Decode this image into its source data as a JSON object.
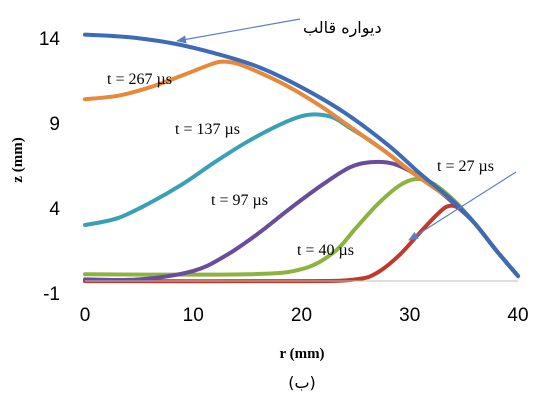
{
  "chart_data": {
    "type": "line",
    "xlabel": "r (mm)",
    "ylabel": "z (mm)",
    "xlim": [
      0,
      40
    ],
    "ylim": [
      -1,
      14
    ],
    "x_ticks": [
      0,
      10,
      20,
      30,
      40
    ],
    "y_ticks": [
      -1,
      4,
      9,
      14
    ],
    "grid": false,
    "caption": "(ب)",
    "series": [
      {
        "name": "t = 27 µs",
        "color": "#c0392b",
        "points": [
          [
            0,
            -0.3
          ],
          [
            20,
            -0.3
          ],
          [
            25,
            -0.2
          ],
          [
            27,
            0.2
          ],
          [
            29,
            1.2
          ],
          [
            31,
            2.6
          ],
          [
            32.5,
            3.6
          ],
          [
            33.5,
            4.1
          ],
          [
            34.5,
            4.0
          ],
          [
            36,
            3.1
          ],
          [
            38,
            1.5
          ],
          [
            40,
            0
          ]
        ]
      },
      {
        "name": "t = 40 µs",
        "color": "#8db33f",
        "points": [
          [
            0,
            0.1
          ],
          [
            15,
            0.1
          ],
          [
            20,
            0.4
          ],
          [
            23,
            1.4
          ],
          [
            25,
            2.8
          ],
          [
            27,
            4.2
          ],
          [
            29,
            5.3
          ],
          [
            30.5,
            5.7
          ],
          [
            32,
            5.5
          ],
          [
            34,
            4.5
          ],
          [
            36,
            3.1
          ],
          [
            38,
            1.5
          ],
          [
            40,
            0
          ]
        ]
      },
      {
        "name": "t = 97 µs",
        "color": "#6a4c9c",
        "points": [
          [
            0,
            -0.2
          ],
          [
            5,
            -0.2
          ],
          [
            10,
            0.3
          ],
          [
            13,
            1.2
          ],
          [
            16,
            2.5
          ],
          [
            19,
            4.0
          ],
          [
            22,
            5.4
          ],
          [
            24.5,
            6.4
          ],
          [
            26.5,
            6.7
          ],
          [
            28.5,
            6.6
          ],
          [
            30.5,
            6.0
          ],
          [
            32.5,
            5.1
          ],
          [
            34,
            4.3
          ],
          [
            36,
            3.1
          ],
          [
            38,
            1.5
          ],
          [
            40,
            0
          ]
        ]
      },
      {
        "name": "t = 137 µs",
        "color": "#3aa0b8",
        "points": [
          [
            0,
            3.0
          ],
          [
            3,
            3.4
          ],
          [
            6,
            4.3
          ],
          [
            9,
            5.4
          ],
          [
            12,
            6.7
          ],
          [
            15,
            7.9
          ],
          [
            18,
            8.9
          ],
          [
            20,
            9.4
          ],
          [
            21.5,
            9.5
          ],
          [
            23,
            9.3
          ],
          [
            24.5,
            8.7
          ],
          [
            26,
            8.1
          ],
          [
            28,
            7.2
          ],
          [
            30,
            6.2
          ],
          [
            32,
            5.3
          ],
          [
            34,
            4.4
          ],
          [
            36,
            3.1
          ],
          [
            38,
            1.5
          ],
          [
            40,
            0
          ]
        ]
      },
      {
        "name": "t = 267 µs",
        "color": "#e8893a",
        "points": [
          [
            0,
            10.4
          ],
          [
            3,
            10.6
          ],
          [
            6,
            11.1
          ],
          [
            9,
            11.8
          ],
          [
            11,
            12.3
          ],
          [
            12.5,
            12.6
          ],
          [
            14,
            12.5
          ],
          [
            16,
            12.0
          ],
          [
            18,
            11.4
          ],
          [
            20,
            10.7
          ],
          [
            22,
            9.9
          ],
          [
            24,
            9.0
          ],
          [
            26,
            8.1
          ],
          [
            28,
            7.2
          ],
          [
            30,
            6.2
          ],
          [
            32,
            5.3
          ],
          [
            34,
            4.4
          ],
          [
            36,
            3.1
          ],
          [
            38,
            1.5
          ],
          [
            40,
            0
          ]
        ]
      },
      {
        "name": "دیواره قالب",
        "color": "#3e6bb5",
        "points": [
          [
            0,
            14.2
          ],
          [
            4,
            14.05
          ],
          [
            8,
            13.7
          ],
          [
            12,
            13.1
          ],
          [
            16,
            12.3
          ],
          [
            20,
            11.1
          ],
          [
            24,
            9.6
          ],
          [
            28,
            7.7
          ],
          [
            31,
            6.0
          ],
          [
            34,
            4.4
          ],
          [
            36,
            3.1
          ],
          [
            38,
            1.5
          ],
          [
            40,
            0
          ]
        ]
      }
    ],
    "annotations": [
      {
        "text": "دیواره قالب",
        "series": "دیواره قالب"
      },
      {
        "text": "t = 267 µs",
        "series": "t = 267 µs"
      },
      {
        "text": "t = 137 µs",
        "series": "t = 137 µs"
      },
      {
        "text": "t = 97 µs",
        "series": "t = 97 µs"
      },
      {
        "text": "t = 40 µs",
        "series": "t = 40 µs"
      },
      {
        "text": "t = 27 µs",
        "series": "t = 27 µs"
      }
    ]
  }
}
